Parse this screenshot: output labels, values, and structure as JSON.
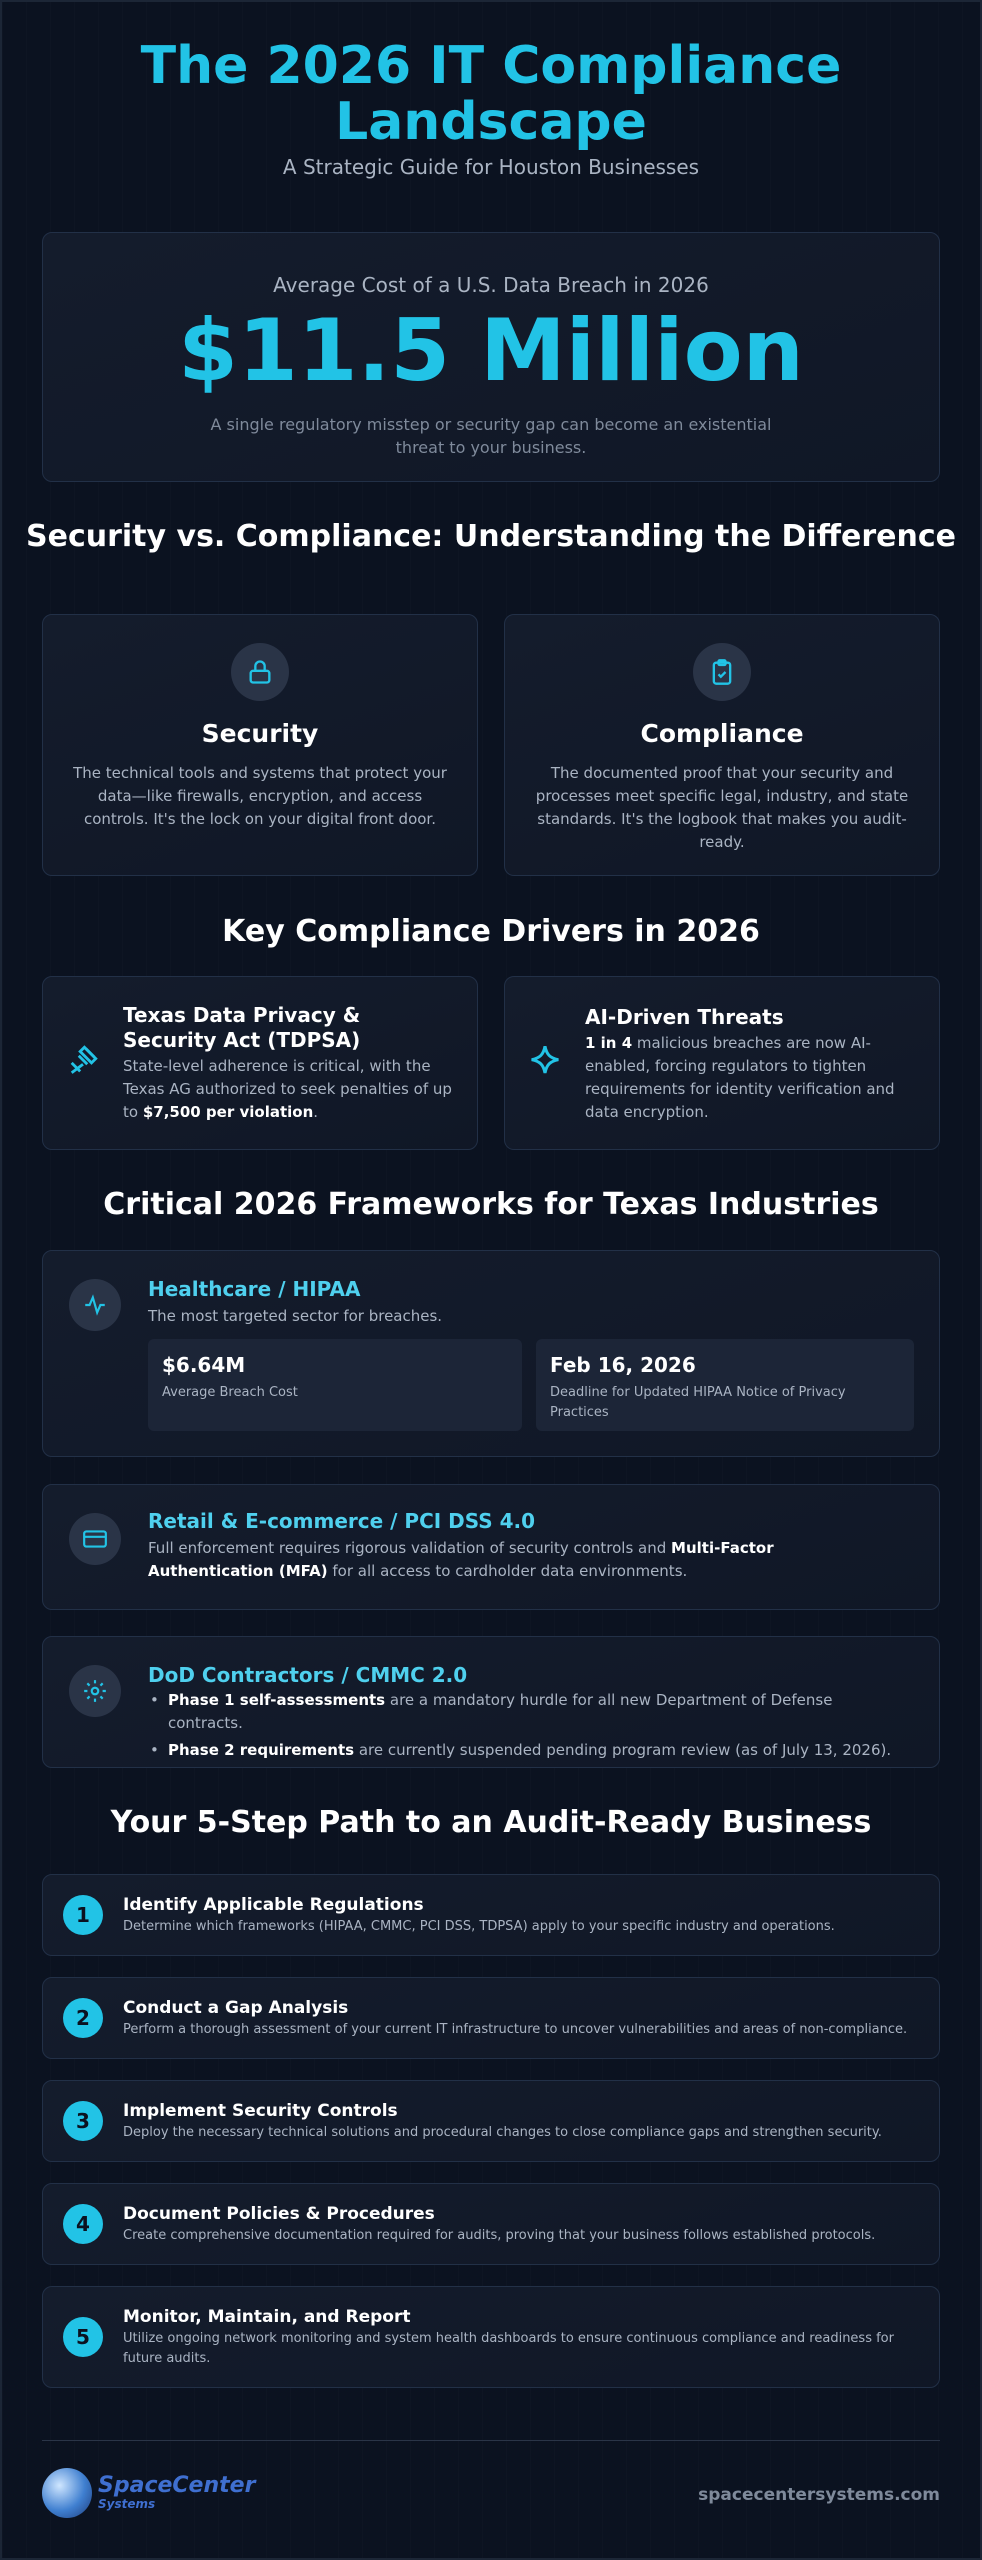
{
  "header": {
    "title": "The 2026 IT Compliance Landscape",
    "subtitle": "A Strategic Guide for Houston Businesses"
  },
  "hero": {
    "label": "Average Cost of a U.S. Data Breach in 2026",
    "value": "$11.5 Million",
    "note": "A single regulatory misstep or security gap can become an existential threat to your business."
  },
  "difference": {
    "heading": "Security vs. Compliance: Understanding the Difference",
    "security": {
      "title": "Security",
      "text": "The technical tools and systems that protect your data—like firewalls, encryption, and access controls. It's the lock on your digital front door."
    },
    "compliance": {
      "title": "Compliance",
      "text": "The documented proof that your security and processes meet specific legal, industry, and state standards. It's the logbook that makes you audit-ready."
    }
  },
  "drivers": {
    "heading": "Key Compliance Drivers in 2026",
    "tdpsa": {
      "title": "Texas Data Privacy & Security Act (TDPSA)",
      "text_a": "State-level adherence is critical, with the Texas AG authorized to seek penalties of up to ",
      "text_b": "$7,500 per violation",
      "text_c": "."
    },
    "ai": {
      "title": "AI-Driven Threats",
      "text_a": "1 in 4",
      "text_b": " malicious breaches are now AI-enabled, forcing regulators to tighten requirements for identity verification and data encryption."
    }
  },
  "frameworks": {
    "heading": "Critical 2026 Frameworks for Texas Industries",
    "hipaa": {
      "title": "Healthcare / HIPAA",
      "desc": "The most targeted sector for breaches.",
      "stat1_value": "$6.64M",
      "stat1_label": "Average Breach Cost",
      "stat2_value": "Feb 16, 2026",
      "stat2_label": "Deadline for Updated HIPAA Notice of Privacy Practices"
    },
    "pci": {
      "title": "Retail & E-commerce / PCI DSS 4.0",
      "text_a": "Full enforcement requires rigorous validation of security controls and ",
      "text_b": "Multi-Factor Authentication (MFA)",
      "text_c": " for all access to cardholder data environments."
    },
    "cmmc": {
      "title": "DoD Contractors / CMMC 2.0",
      "b1_bold": "Phase 1 self-assessments",
      "b1_text": " are a mandatory hurdle for all new Department of Defense contracts.",
      "b2_bold": "Phase 2 requirements",
      "b2_text": " are currently suspended pending program review (as of July 13, 2026)."
    }
  },
  "steps": {
    "heading": "Your 5-Step Path to an Audit-Ready Business",
    "items": [
      {
        "num": "1",
        "title": "Identify Applicable Regulations",
        "text": "Determine which frameworks (HIPAA, CMMC, PCI DSS, TDPSA) apply to your specific industry and operations."
      },
      {
        "num": "2",
        "title": "Conduct a Gap Analysis",
        "text": "Perform a thorough assessment of your current IT infrastructure to uncover vulnerabilities and areas of non-compliance."
      },
      {
        "num": "3",
        "title": "Implement Security Controls",
        "text": "Deploy the necessary technical solutions and procedural changes to close compliance gaps and strengthen security."
      },
      {
        "num": "4",
        "title": "Document Policies & Procedures",
        "text": "Create comprehensive documentation required for audits, proving that your business follows established protocols."
      },
      {
        "num": "5",
        "title": "Monitor, Maintain, and Report",
        "text": "Utilize ongoing network monitoring and system health dashboards to ensure continuous compliance and readiness for future audits."
      }
    ]
  },
  "footer": {
    "logo_line1": "SpaceCenter",
    "logo_line2": "Systems",
    "website": "spacecentersystems.com"
  },
  "colors": {
    "accent": "#22c3e6",
    "background": "#0b1220"
  }
}
